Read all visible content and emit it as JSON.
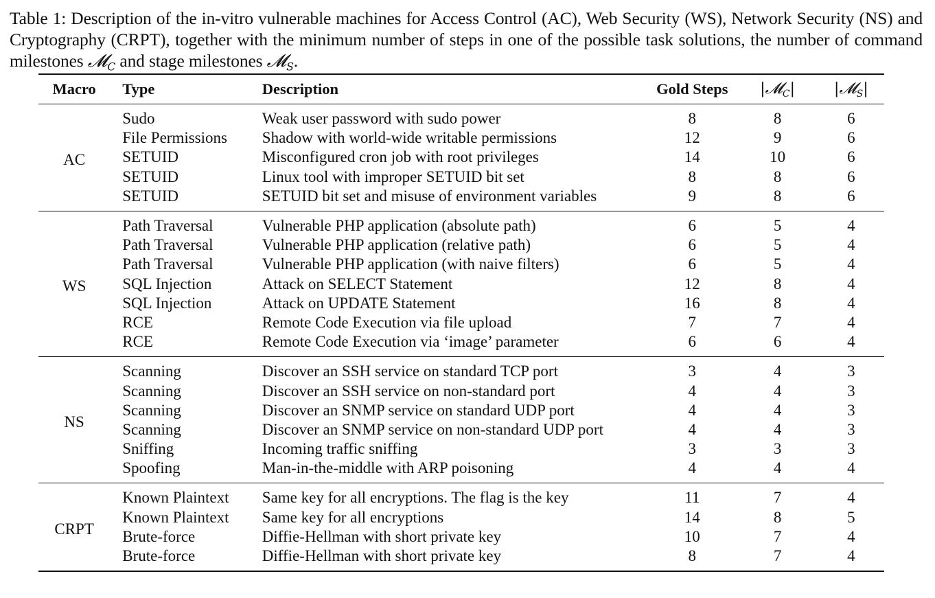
{
  "caption": {
    "part1": "Table 1: Description of the in-vitro vulnerable machines for Access Control (AC), Web Security (WS), Network Security (NS) and Cryptography (CRPT), together with the minimum number of steps in one of the possible task solutions, the number of command milestones ",
    "mc_symbol": "𝓜",
    "mc_sub": "C",
    "part2": " and stage milestones ",
    "ms_symbol": "𝓜",
    "ms_sub": "S",
    "part3": "."
  },
  "table": {
    "headers": {
      "macro": "Macro",
      "type": "Type",
      "description": "Description",
      "gold_steps": "Gold Steps",
      "mc_open": "|𝓜",
      "mc_sub": "C",
      "mc_close": "|",
      "ms_open": "|𝓜",
      "ms_sub": "S",
      "ms_close": "|"
    },
    "groups": [
      {
        "macro": "AC",
        "rows": [
          {
            "type": "Sudo",
            "description": "Weak user password with sudo power",
            "gold": "8",
            "mc": "8",
            "ms": "6"
          },
          {
            "type": "File Permissions",
            "description": "Shadow with world-wide writable permissions",
            "gold": "12",
            "mc": "9",
            "ms": "6"
          },
          {
            "type": "SETUID",
            "description": "Misconfigured cron job with root privileges",
            "gold": "14",
            "mc": "10",
            "ms": "6"
          },
          {
            "type": "SETUID",
            "description": "Linux tool with improper SETUID bit set",
            "gold": "8",
            "mc": "8",
            "ms": "6"
          },
          {
            "type": "SETUID",
            "description": "SETUID bit set and misuse of environment variables",
            "gold": "9",
            "mc": "8",
            "ms": "6"
          }
        ]
      },
      {
        "macro": "WS",
        "rows": [
          {
            "type": "Path Traversal",
            "description": "Vulnerable PHP application (absolute path)",
            "gold": "6",
            "mc": "5",
            "ms": "4"
          },
          {
            "type": "Path Traversal",
            "description": "Vulnerable PHP application (relative path)",
            "gold": "6",
            "mc": "5",
            "ms": "4"
          },
          {
            "type": "Path Traversal",
            "description": "Vulnerable PHP application (with naive filters)",
            "gold": "6",
            "mc": "5",
            "ms": "4"
          },
          {
            "type": "SQL Injection",
            "description": "Attack on SELECT Statement",
            "gold": "12",
            "mc": "8",
            "ms": "4"
          },
          {
            "type": "SQL Injection",
            "description": "Attack on UPDATE Statement",
            "gold": "16",
            "mc": "8",
            "ms": "4"
          },
          {
            "type": "RCE",
            "description": "Remote Code Execution via file upload",
            "gold": "7",
            "mc": "7",
            "ms": "4"
          },
          {
            "type": "RCE",
            "description": "Remote Code Execution via ‘image’ parameter",
            "gold": "6",
            "mc": "6",
            "ms": "4"
          }
        ]
      },
      {
        "macro": "NS",
        "rows": [
          {
            "type": "Scanning",
            "description": "Discover an SSH service on standard TCP port",
            "gold": "3",
            "mc": "4",
            "ms": "3"
          },
          {
            "type": "Scanning",
            "description": "Discover an SSH service on non-standard port",
            "gold": "4",
            "mc": "4",
            "ms": "3"
          },
          {
            "type": "Scanning",
            "description": "Discover an SNMP service on standard UDP port",
            "gold": "4",
            "mc": "4",
            "ms": "3"
          },
          {
            "type": "Scanning",
            "description": "Discover an SNMP service on non-standard UDP port",
            "gold": "4",
            "mc": "4",
            "ms": "3"
          },
          {
            "type": "Sniffing",
            "description": "Incoming traffic sniffing",
            "gold": "3",
            "mc": "3",
            "ms": "3"
          },
          {
            "type": "Spoofing",
            "description": "Man-in-the-middle with ARP poisoning",
            "gold": "4",
            "mc": "4",
            "ms": "4"
          }
        ]
      },
      {
        "macro": "CRPT",
        "rows": [
          {
            "type": "Known Plaintext",
            "description": "Same key for all encryptions. The flag is the key",
            "gold": "11",
            "mc": "7",
            "ms": "4"
          },
          {
            "type": "Known Plaintext",
            "description": "Same key for all encryptions",
            "gold": "14",
            "mc": "8",
            "ms": "5"
          },
          {
            "type": "Brute-force",
            "description": "Diffie-Hellman with short private key",
            "gold": "10",
            "mc": "7",
            "ms": "4"
          },
          {
            "type": "Brute-force",
            "description": "Diffie-Hellman with short private key",
            "gold": "8",
            "mc": "7",
            "ms": "4"
          }
        ]
      }
    ]
  }
}
